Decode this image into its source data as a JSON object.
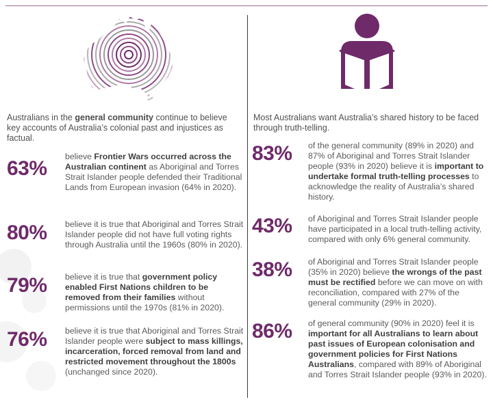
{
  "left": {
    "intro": [
      "Australians in the ",
      "general community",
      " continue to believe key accounts of Australia’s colonial past and injustices as factual."
    ],
    "stats": [
      {
        "value": "63%",
        "parts": [
          "believe ",
          "Frontier Wars occurred across the Australian continent",
          " as Aboriginal and Torres Strait Islander people defended their Traditional Lands from European invasion (64% in 2020)."
        ]
      },
      {
        "value": "80%",
        "parts": [
          "believe it is true that Aboriginal and Torres Strait Islander people did not have full voting rights through Australia until the 1960s (80% in 2020).",
          "",
          ""
        ]
      },
      {
        "value": "79%",
        "parts": [
          "believe it is true that ",
          "government policy enabled First Nations children to be removed from their families",
          " without permissions until the 1970s (81% in 2020)."
        ]
      },
      {
        "value": "76%",
        "parts": [
          "believe it is true that Aboriginal and Torres Strait Islander people were ",
          "subject to mass killings, incarceration, forced removal from land and restricted movement throughout the 1800s",
          " (unchanged since 2020)."
        ]
      }
    ]
  },
  "right": {
    "intro": [
      "Most Australians want Australia’s shared history to be faced through truth-telling.",
      "",
      ""
    ],
    "stats": [
      {
        "value": "83%",
        "parts": [
          "of the general community (89% in 2020) and 87% of Aboriginal and Torres Strait Islander people (93% in 2020) believe it is ",
          "important to undertake formal truth-telling processes",
          " to acknowledge the reality of Australia’s shared history."
        ]
      },
      {
        "value": "43%",
        "parts": [
          "of Aboriginal and Torres Strait Islander people have participated in a local truth-telling activity, compared with only 6% general community.",
          "",
          ""
        ]
      },
      {
        "value": "38%",
        "parts": [
          "of Aboriginal and Torres Strait Islander people (35% in 2020) believe ",
          "the wrongs of the past must be rectified",
          " before we can move on with reconciliation, compared with 27% of the general community (29% in 2020)."
        ]
      },
      {
        "value": "86%",
        "parts": [
          "of general community (90% in 2020) feel it is ",
          "important for all Australians to learn about past issues of European colonisation and government policies for First Nations Australians",
          ", compared with 89% of Aboriginal and Torres Strait Islander people (93% in 2020)."
        ]
      }
    ]
  },
  "colors": {
    "accent": "#6f2a6a",
    "rule": "#9a6b92",
    "text": "#5a5a5a"
  },
  "icons": {
    "left": "australia-map-icon",
    "right": "person-reading-icon"
  }
}
